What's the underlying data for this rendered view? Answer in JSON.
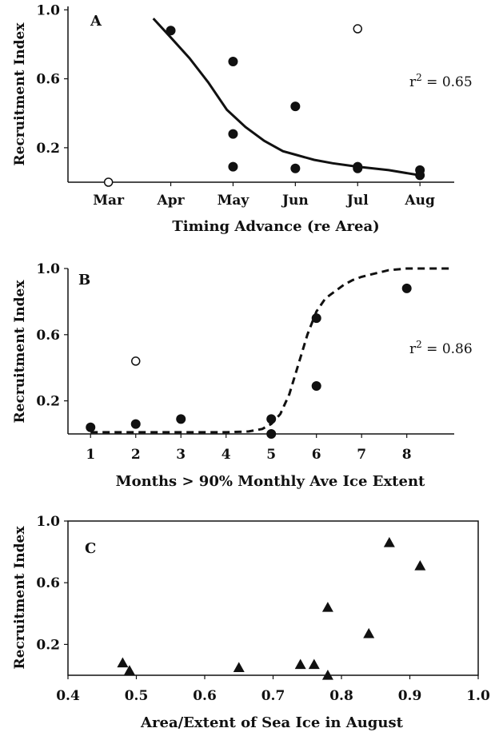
{
  "chart_data": [
    {
      "panel_label": "A",
      "type": "scatter",
      "xlabel": "Timing Advance (re Area)",
      "ylabel": "Recruitment Index",
      "x_ticks": [
        "Mar",
        "Apr",
        "May",
        "Jun",
        "Jul",
        "Aug"
      ],
      "y_ticks": [
        "0.2",
        "0.6",
        "1.0"
      ],
      "xlim": [
        -0.65,
        5.55
      ],
      "ylim": [
        0.0,
        1.02
      ],
      "annotation": "r2 = 0.65",
      "points_filled": [
        [
          1,
          0.88
        ],
        [
          2,
          0.7
        ],
        [
          2,
          0.28
        ],
        [
          2,
          0.09
        ],
        [
          3,
          0.44
        ],
        [
          3,
          0.08
        ],
        [
          4,
          0.09
        ],
        [
          4,
          0.08
        ],
        [
          5,
          0.07
        ],
        [
          5,
          0.04
        ]
      ],
      "points_open": [
        [
          0,
          0.0
        ],
        [
          4,
          0.89
        ]
      ],
      "fit_line": [
        [
          0.72,
          0.95
        ],
        [
          1.0,
          0.84
        ],
        [
          1.3,
          0.72
        ],
        [
          1.6,
          0.58
        ],
        [
          1.9,
          0.42
        ],
        [
          2.2,
          0.32
        ],
        [
          2.5,
          0.24
        ],
        [
          2.8,
          0.18
        ],
        [
          3.0,
          0.16
        ],
        [
          3.3,
          0.13
        ],
        [
          3.6,
          0.11
        ],
        [
          4.0,
          0.09
        ],
        [
          4.5,
          0.07
        ],
        [
          5.0,
          0.04
        ]
      ],
      "fit_style": "solid"
    },
    {
      "panel_label": "B",
      "type": "scatter",
      "xlabel": "Months > 90% Monthly Ave Ice Extent",
      "ylabel": "Recruitment Index",
      "x_ticks": [
        "1",
        "2",
        "3",
        "4",
        "5",
        "6",
        "7",
        "8"
      ],
      "y_ticks": [
        "0.2",
        "0.6",
        "1.0"
      ],
      "xlim": [
        0.5,
        9.05
      ],
      "ylim": [
        0.0,
        1.0
      ],
      "annotation": "r2 = 0.86",
      "points_filled": [
        [
          1,
          0.04
        ],
        [
          2,
          0.06
        ],
        [
          3,
          0.09
        ],
        [
          5,
          0.09
        ],
        [
          5,
          0.0
        ],
        [
          6,
          0.7
        ],
        [
          6,
          0.29
        ],
        [
          8,
          0.88
        ]
      ],
      "points_open": [
        [
          2,
          0.44
        ]
      ],
      "fit_line": [
        [
          1.0,
          0.01
        ],
        [
          2.0,
          0.01
        ],
        [
          3.0,
          0.01
        ],
        [
          4.0,
          0.01
        ],
        [
          4.5,
          0.015
        ],
        [
          4.8,
          0.03
        ],
        [
          5.0,
          0.06
        ],
        [
          5.2,
          0.12
        ],
        [
          5.4,
          0.24
        ],
        [
          5.6,
          0.42
        ],
        [
          5.8,
          0.6
        ],
        [
          6.0,
          0.74
        ],
        [
          6.2,
          0.82
        ],
        [
          6.4,
          0.86
        ],
        [
          6.6,
          0.9
        ],
        [
          6.8,
          0.93
        ],
        [
          7.0,
          0.95
        ],
        [
          7.3,
          0.97
        ],
        [
          7.6,
          0.99
        ],
        [
          8.0,
          1.0
        ],
        [
          9.0,
          1.0
        ]
      ],
      "fit_style": "dashed"
    },
    {
      "panel_label": "C",
      "type": "scatter",
      "xlabel": "Area/Extent of Sea Ice in August",
      "ylabel": "Recruitment Index",
      "x_ticks": [
        "0.4",
        "0.5",
        "0.6",
        "0.7",
        "0.8",
        "0.9",
        "1.0"
      ],
      "y_ticks": [
        "0.2",
        "0.6",
        "1.0"
      ],
      "xlim": [
        0.4,
        1.0
      ],
      "ylim": [
        0.0,
        1.0
      ],
      "points_triangle": [
        [
          0.48,
          0.08
        ],
        [
          0.49,
          0.03
        ],
        [
          0.65,
          0.05
        ],
        [
          0.74,
          0.07
        ],
        [
          0.76,
          0.07
        ],
        [
          0.78,
          0.44
        ],
        [
          0.78,
          0.0
        ],
        [
          0.84,
          0.27
        ],
        [
          0.87,
          0.86
        ],
        [
          0.915,
          0.71
        ]
      ],
      "grid": false
    }
  ]
}
